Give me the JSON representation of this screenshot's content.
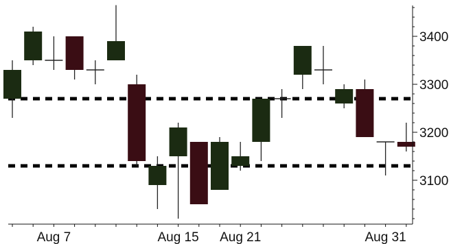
{
  "chart_data": {
    "type": "candlestick",
    "title": "",
    "xlabel": "",
    "ylabel": "",
    "ylim": [
      3015,
      3465
    ],
    "y_ticks": [
      3100,
      3200,
      3300,
      3400
    ],
    "y_axis_side": "right",
    "x_tick_labels": [
      {
        "label": "Aug 7",
        "index": 2
      },
      {
        "label": "Aug 15",
        "index": 8
      },
      {
        "label": "Aug 21",
        "index": 11
      },
      {
        "label": "Aug 31",
        "index": 18
      }
    ],
    "horizontal_lines": [
      {
        "value": 3270,
        "style": "dashed"
      },
      {
        "value": 3130,
        "style": "dashed"
      }
    ],
    "up_color": "#1b2b12",
    "down_color": "#3a0d14",
    "candles": [
      {
        "index": 0,
        "open": 3270,
        "high": 3350,
        "low": 3230,
        "close": 3330
      },
      {
        "index": 1,
        "open": 3350,
        "high": 3420,
        "low": 3340,
        "close": 3410
      },
      {
        "index": 2,
        "open": 3350,
        "high": 3400,
        "low": 3330,
        "close": 3350
      },
      {
        "index": 3,
        "open": 3400,
        "high": 3400,
        "low": 3310,
        "close": 3330
      },
      {
        "index": 4,
        "open": 3330,
        "high": 3350,
        "low": 3300,
        "close": 3330
      },
      {
        "index": 5,
        "open": 3350,
        "high": 3465,
        "low": 3350,
        "close": 3390
      },
      {
        "index": 6,
        "open": 3300,
        "high": 3320,
        "low": 3130,
        "close": 3140
      },
      {
        "index": 7,
        "open": 3090,
        "high": 3150,
        "low": 3040,
        "close": 3130
      },
      {
        "index": 8,
        "open": 3150,
        "high": 3220,
        "low": 3020,
        "close": 3210
      },
      {
        "index": 9,
        "open": 3180,
        "high": 3180,
        "low": 3050,
        "close": 3050
      },
      {
        "index": 10,
        "open": 3080,
        "high": 3190,
        "low": 3080,
        "close": 3180
      },
      {
        "index": 11,
        "open": 3130,
        "high": 3180,
        "low": 3120,
        "close": 3150
      },
      {
        "index": 12,
        "open": 3180,
        "high": 3270,
        "low": 3140,
        "close": 3270
      },
      {
        "index": 13,
        "open": 3270,
        "high": 3290,
        "low": 3230,
        "close": 3270
      },
      {
        "index": 14,
        "open": 3320,
        "high": 3380,
        "low": 3290,
        "close": 3380
      },
      {
        "index": 15,
        "open": 3330,
        "high": 3380,
        "low": 3300,
        "close": 3330
      },
      {
        "index": 16,
        "open": 3260,
        "high": 3300,
        "low": 3250,
        "close": 3290
      },
      {
        "index": 17,
        "open": 3290,
        "high": 3310,
        "low": 3190,
        "close": 3190
      },
      {
        "index": 18,
        "open": 3180,
        "high": 3180,
        "low": 3110,
        "close": 3180
      },
      {
        "index": 19,
        "open": 3180,
        "high": 3220,
        "low": 3160,
        "close": 3170
      }
    ]
  }
}
